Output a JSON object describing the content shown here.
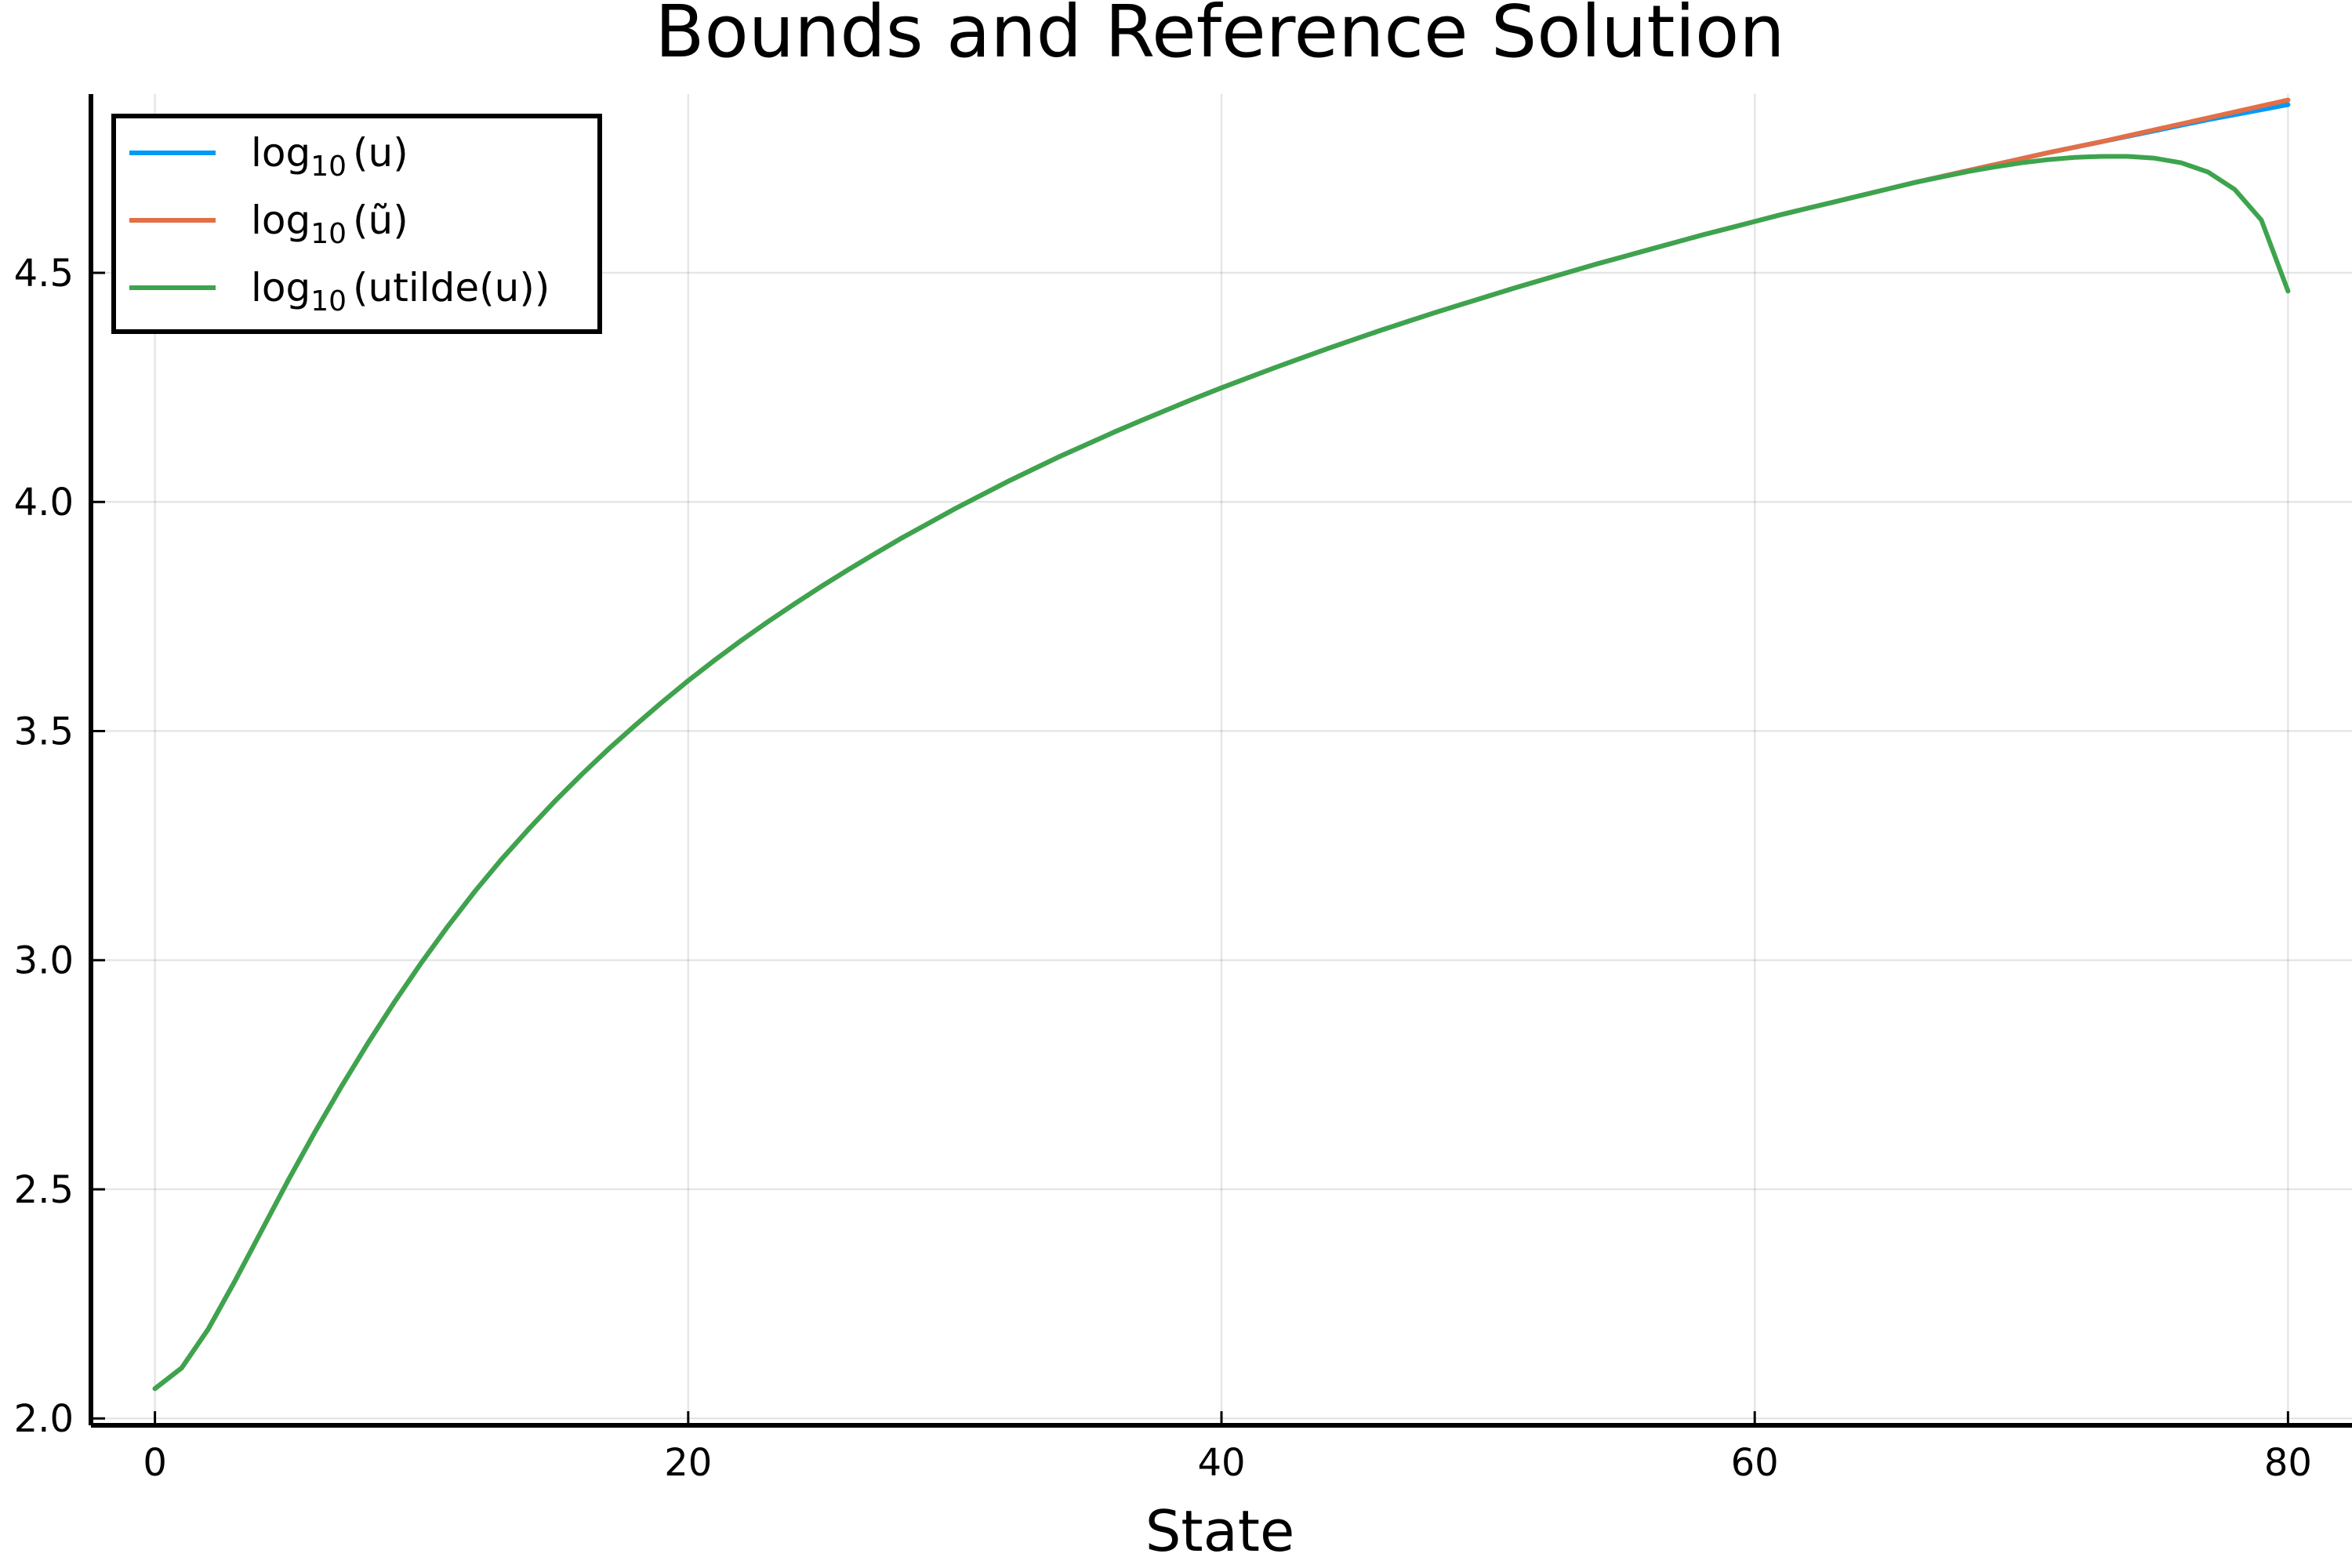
{
  "chart_data": {
    "type": "line",
    "title": "Bounds and Reference Solution",
    "xlabel": "State",
    "ylabel": "",
    "xlim": [
      -2.4,
      82.4
    ],
    "ylim": [
      1.985,
      4.89
    ],
    "x_ticks": [
      0,
      20,
      40,
      60,
      80
    ],
    "x_tick_labels": [
      "0",
      "20",
      "40",
      "60",
      "80"
    ],
    "y_ticks": [
      2.0,
      2.5,
      3.0,
      3.5,
      4.0,
      4.5
    ],
    "y_tick_labels": [
      "2.0",
      "2.5",
      "3.0",
      "3.5",
      "4.0",
      "4.5"
    ],
    "grid": true,
    "legend_position": "top-left",
    "series": [
      {
        "name": "log₁₀(u)",
        "legend_base": "log",
        "legend_sub": "10",
        "legend_arg": "(u)",
        "color": "#009af9",
        "x": [
          0,
          1,
          2,
          3,
          4,
          5,
          6,
          7,
          8,
          9,
          10,
          11,
          12,
          13,
          14,
          15,
          16,
          17,
          18,
          19,
          20,
          21,
          22,
          23,
          24,
          25,
          26,
          27,
          28,
          29,
          30,
          31,
          32,
          33,
          34,
          35,
          36,
          37,
          38,
          39,
          40,
          41,
          42,
          43,
          44,
          45,
          46,
          47,
          48,
          49,
          50,
          51,
          52,
          53,
          54,
          55,
          56,
          57,
          58,
          59,
          60,
          61,
          62,
          63,
          64,
          65,
          66,
          67,
          68,
          69,
          70,
          71,
          72,
          73,
          74,
          75,
          76,
          77,
          78,
          79,
          80
        ],
        "y": [
          2.065,
          2.11,
          2.195,
          2.3,
          2.41,
          2.52,
          2.625,
          2.725,
          2.82,
          2.91,
          2.995,
          3.075,
          3.15,
          3.22,
          3.285,
          3.347,
          3.405,
          3.46,
          3.512,
          3.562,
          3.61,
          3.655,
          3.698,
          3.739,
          3.778,
          3.816,
          3.852,
          3.887,
          3.921,
          3.953,
          3.985,
          4.015,
          4.045,
          4.073,
          4.101,
          4.127,
          4.153,
          4.178,
          4.202,
          4.226,
          4.249,
          4.271,
          4.293,
          4.314,
          4.335,
          4.355,
          4.375,
          4.394,
          4.413,
          4.431,
          4.449,
          4.467,
          4.484,
          4.501,
          4.518,
          4.534,
          4.55,
          4.566,
          4.582,
          4.597,
          4.612,
          4.627,
          4.641,
          4.655,
          4.669,
          4.683,
          4.697,
          4.71,
          4.723,
          4.736,
          4.749,
          4.762,
          4.774,
          4.786,
          4.798,
          4.81,
          4.822,
          4.834,
          4.845,
          4.856,
          4.867
        ]
      },
      {
        "name": "log₁₀(ũ)",
        "legend_base": "log",
        "legend_sub": "10",
        "legend_arg": "(ũ)",
        "color": "#e26f46",
        "x": [
          0,
          1,
          2,
          3,
          4,
          5,
          6,
          7,
          8,
          9,
          10,
          11,
          12,
          13,
          14,
          15,
          16,
          17,
          18,
          19,
          20,
          21,
          22,
          23,
          24,
          25,
          26,
          27,
          28,
          29,
          30,
          31,
          32,
          33,
          34,
          35,
          36,
          37,
          38,
          39,
          40,
          41,
          42,
          43,
          44,
          45,
          46,
          47,
          48,
          49,
          50,
          51,
          52,
          53,
          54,
          55,
          56,
          57,
          58,
          59,
          60,
          61,
          62,
          63,
          64,
          65,
          66,
          67,
          68,
          69,
          70,
          71,
          72,
          73,
          74,
          75,
          76,
          77,
          78,
          79,
          80
        ],
        "y": [
          2.065,
          2.11,
          2.195,
          2.3,
          2.41,
          2.52,
          2.625,
          2.725,
          2.82,
          2.91,
          2.995,
          3.075,
          3.15,
          3.22,
          3.285,
          3.347,
          3.405,
          3.46,
          3.512,
          3.562,
          3.61,
          3.655,
          3.698,
          3.739,
          3.778,
          3.816,
          3.852,
          3.887,
          3.921,
          3.953,
          3.985,
          4.015,
          4.045,
          4.073,
          4.101,
          4.127,
          4.153,
          4.178,
          4.202,
          4.226,
          4.249,
          4.271,
          4.293,
          4.314,
          4.335,
          4.355,
          4.375,
          4.394,
          4.413,
          4.431,
          4.449,
          4.467,
          4.484,
          4.501,
          4.518,
          4.534,
          4.55,
          4.566,
          4.582,
          4.597,
          4.612,
          4.627,
          4.641,
          4.655,
          4.669,
          4.683,
          4.697,
          4.71,
          4.723,
          4.736,
          4.749,
          4.762,
          4.774,
          4.786,
          4.799,
          4.812,
          4.825,
          4.838,
          4.851,
          4.864,
          4.877
        ]
      },
      {
        "name": "log₁₀(utilde(u))",
        "legend_base": "log",
        "legend_sub": "10",
        "legend_arg": "(utilde(u))",
        "color": "#3da44d",
        "x": [
          0,
          1,
          2,
          3,
          4,
          5,
          6,
          7,
          8,
          9,
          10,
          11,
          12,
          13,
          14,
          15,
          16,
          17,
          18,
          19,
          20,
          21,
          22,
          23,
          24,
          25,
          26,
          27,
          28,
          29,
          30,
          31,
          32,
          33,
          34,
          35,
          36,
          37,
          38,
          39,
          40,
          41,
          42,
          43,
          44,
          45,
          46,
          47,
          48,
          49,
          50,
          51,
          52,
          53,
          54,
          55,
          56,
          57,
          58,
          59,
          60,
          61,
          62,
          63,
          64,
          65,
          66,
          67,
          68,
          69,
          70,
          71,
          72,
          73,
          74,
          75,
          76,
          77,
          78,
          79,
          80
        ],
        "y": [
          2.065,
          2.11,
          2.195,
          2.3,
          2.41,
          2.52,
          2.625,
          2.725,
          2.82,
          2.91,
          2.995,
          3.075,
          3.15,
          3.22,
          3.285,
          3.347,
          3.405,
          3.46,
          3.512,
          3.562,
          3.61,
          3.655,
          3.698,
          3.739,
          3.778,
          3.816,
          3.852,
          3.887,
          3.921,
          3.953,
          3.985,
          4.015,
          4.045,
          4.073,
          4.101,
          4.127,
          4.153,
          4.178,
          4.202,
          4.226,
          4.249,
          4.271,
          4.293,
          4.314,
          4.335,
          4.355,
          4.375,
          4.394,
          4.413,
          4.431,
          4.449,
          4.467,
          4.484,
          4.501,
          4.518,
          4.534,
          4.55,
          4.566,
          4.582,
          4.597,
          4.612,
          4.627,
          4.641,
          4.655,
          4.669,
          4.683,
          4.697,
          4.709,
          4.721,
          4.731,
          4.74,
          4.747,
          4.752,
          4.754,
          4.754,
          4.75,
          4.74,
          4.72,
          4.682,
          4.615,
          4.46
        ]
      }
    ]
  }
}
